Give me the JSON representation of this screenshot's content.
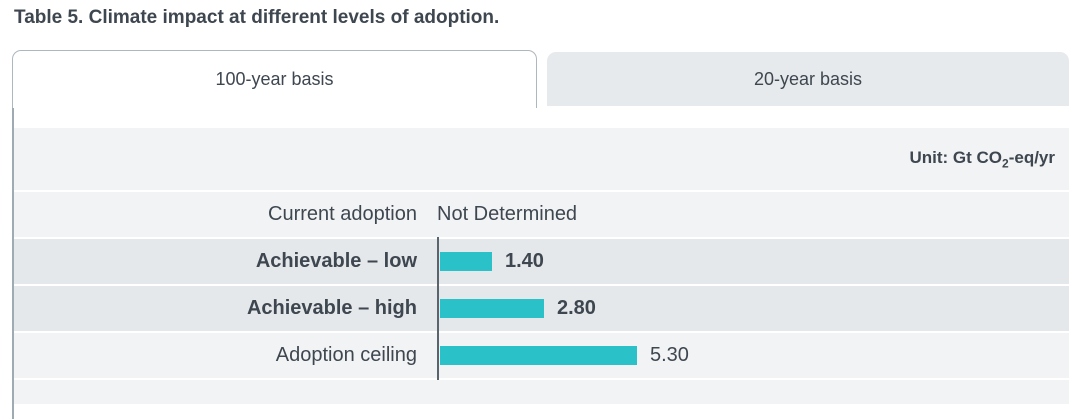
{
  "title": "Table 5. Climate impact at different levels of adoption.",
  "tabs": [
    {
      "label": "100-year basis",
      "state": "active"
    },
    {
      "label": "20-year basis",
      "state": "inactive"
    }
  ],
  "unit": {
    "prefix": "Unit: Gt CO",
    "sub": "2",
    "suffix": "-eq/yr"
  },
  "rows": [
    {
      "label": "Current adoption",
      "value_label": "Not Determined",
      "emphasis": false
    },
    {
      "label": "Achievable – low",
      "value_label": "1.40",
      "emphasis": true
    },
    {
      "label": "Achievable – high",
      "value_label": "2.80",
      "emphasis": true
    },
    {
      "label": "Adoption ceiling",
      "value_label": "5.30",
      "emphasis": false
    }
  ],
  "chart_data": {
    "type": "bar",
    "orientation": "horizontal",
    "title": "Table 5. Climate impact at different levels of adoption.",
    "active_tab": "100-year basis",
    "unit": "Gt CO2-eq/yr",
    "categories": [
      "Current adoption",
      "Achievable – low",
      "Achievable – high",
      "Adoption ceiling"
    ],
    "values": [
      null,
      1.4,
      2.8,
      5.3
    ],
    "value_labels": [
      "Not Determined",
      "1.40",
      "2.80",
      "5.30"
    ],
    "xlim": [
      0,
      5.3
    ],
    "legend": "none",
    "grid": "none",
    "bar_color": "#2bc1c8"
  },
  "colors": {
    "bar": "#2bc1c8",
    "row_light": "#f2f3f4",
    "row_dark": "#e5e8ea",
    "text": "#3e4750",
    "axis": "#5a646c",
    "tab_inactive_bg": "#e7eaec",
    "border": "#adb7bf"
  }
}
